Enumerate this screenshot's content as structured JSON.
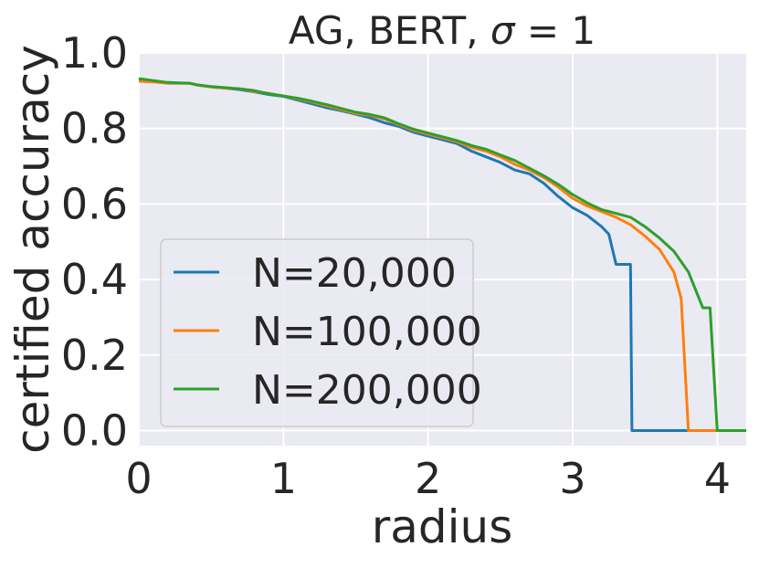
{
  "chart_data": {
    "type": "line",
    "title": "AG, BERT, σ = 1",
    "title_prefix": "AG, BERT, ",
    "title_sigma": "σ",
    "title_suffix": " = 1",
    "xlabel": "radius",
    "ylabel": "certified accuracy",
    "xlim": [
      0,
      4.2
    ],
    "ylim": [
      -0.04,
      1.0
    ],
    "xticks": [
      0,
      1,
      2,
      3,
      4
    ],
    "xtick_labels": [
      "0",
      "1",
      "2",
      "3",
      "4"
    ],
    "yticks": [
      0.0,
      0.2,
      0.4,
      0.6,
      0.8,
      1.0
    ],
    "ytick_labels": [
      "0.0",
      "0.2",
      "0.4",
      "0.6",
      "0.8",
      "1.0"
    ],
    "grid": true,
    "background_color": "#eaeaf2",
    "grid_color": "#ffffff",
    "legend_position": "lower-left",
    "series": [
      {
        "name": "N=20,000",
        "color": "#1f77b4",
        "x": [
          0,
          0.1,
          0.2,
          0.35,
          0.4,
          0.5,
          0.6,
          0.7,
          0.8,
          0.9,
          1.0,
          1.1,
          1.2,
          1.3,
          1.4,
          1.5,
          1.6,
          1.7,
          1.8,
          1.9,
          2.0,
          2.1,
          2.2,
          2.3,
          2.4,
          2.5,
          2.6,
          2.7,
          2.8,
          2.9,
          3.0,
          3.1,
          3.2,
          3.25,
          3.3,
          3.35,
          3.4,
          3.41,
          4.2
        ],
        "y": [
          0.93,
          0.925,
          0.92,
          0.92,
          0.915,
          0.91,
          0.907,
          0.903,
          0.897,
          0.89,
          0.885,
          0.875,
          0.865,
          0.855,
          0.847,
          0.838,
          0.828,
          0.815,
          0.805,
          0.79,
          0.78,
          0.77,
          0.76,
          0.74,
          0.725,
          0.71,
          0.69,
          0.68,
          0.655,
          0.62,
          0.59,
          0.57,
          0.54,
          0.52,
          0.44,
          0.44,
          0.44,
          0.0,
          0.0
        ]
      },
      {
        "name": "N=100,000",
        "color": "#ff7f0e",
        "x": [
          0,
          0.1,
          0.2,
          0.35,
          0.4,
          0.5,
          0.6,
          0.7,
          0.8,
          0.9,
          1.0,
          1.1,
          1.2,
          1.3,
          1.4,
          1.5,
          1.6,
          1.7,
          1.8,
          1.9,
          2.0,
          2.1,
          2.2,
          2.3,
          2.4,
          2.5,
          2.6,
          2.7,
          2.8,
          2.9,
          3.0,
          3.1,
          3.2,
          3.3,
          3.4,
          3.5,
          3.6,
          3.7,
          3.75,
          3.8,
          3.81,
          4.2
        ],
        "y": [
          0.925,
          0.923,
          0.92,
          0.92,
          0.915,
          0.91,
          0.907,
          0.905,
          0.898,
          0.893,
          0.886,
          0.878,
          0.87,
          0.86,
          0.85,
          0.84,
          0.835,
          0.825,
          0.81,
          0.795,
          0.785,
          0.775,
          0.765,
          0.75,
          0.74,
          0.725,
          0.705,
          0.69,
          0.67,
          0.645,
          0.615,
          0.595,
          0.58,
          0.565,
          0.545,
          0.515,
          0.48,
          0.42,
          0.35,
          0.0,
          0.0,
          0.0
        ]
      },
      {
        "name": "N=200,000",
        "color": "#2ca02c",
        "x": [
          0,
          0.1,
          0.2,
          0.35,
          0.4,
          0.5,
          0.6,
          0.7,
          0.8,
          0.9,
          1.0,
          1.1,
          1.2,
          1.3,
          1.4,
          1.5,
          1.6,
          1.7,
          1.8,
          1.9,
          2.0,
          2.1,
          2.2,
          2.3,
          2.4,
          2.5,
          2.6,
          2.7,
          2.8,
          2.9,
          3.0,
          3.1,
          3.2,
          3.3,
          3.4,
          3.5,
          3.6,
          3.7,
          3.8,
          3.9,
          3.95,
          4.0,
          4.01,
          4.2
        ],
        "y": [
          0.932,
          0.927,
          0.922,
          0.92,
          0.916,
          0.911,
          0.908,
          0.905,
          0.9,
          0.892,
          0.886,
          0.88,
          0.872,
          0.863,
          0.853,
          0.843,
          0.837,
          0.828,
          0.812,
          0.798,
          0.788,
          0.778,
          0.768,
          0.755,
          0.745,
          0.73,
          0.715,
          0.695,
          0.675,
          0.652,
          0.625,
          0.603,
          0.585,
          0.575,
          0.565,
          0.54,
          0.51,
          0.475,
          0.42,
          0.325,
          0.325,
          0.0,
          0.0,
          0.0
        ]
      }
    ]
  }
}
